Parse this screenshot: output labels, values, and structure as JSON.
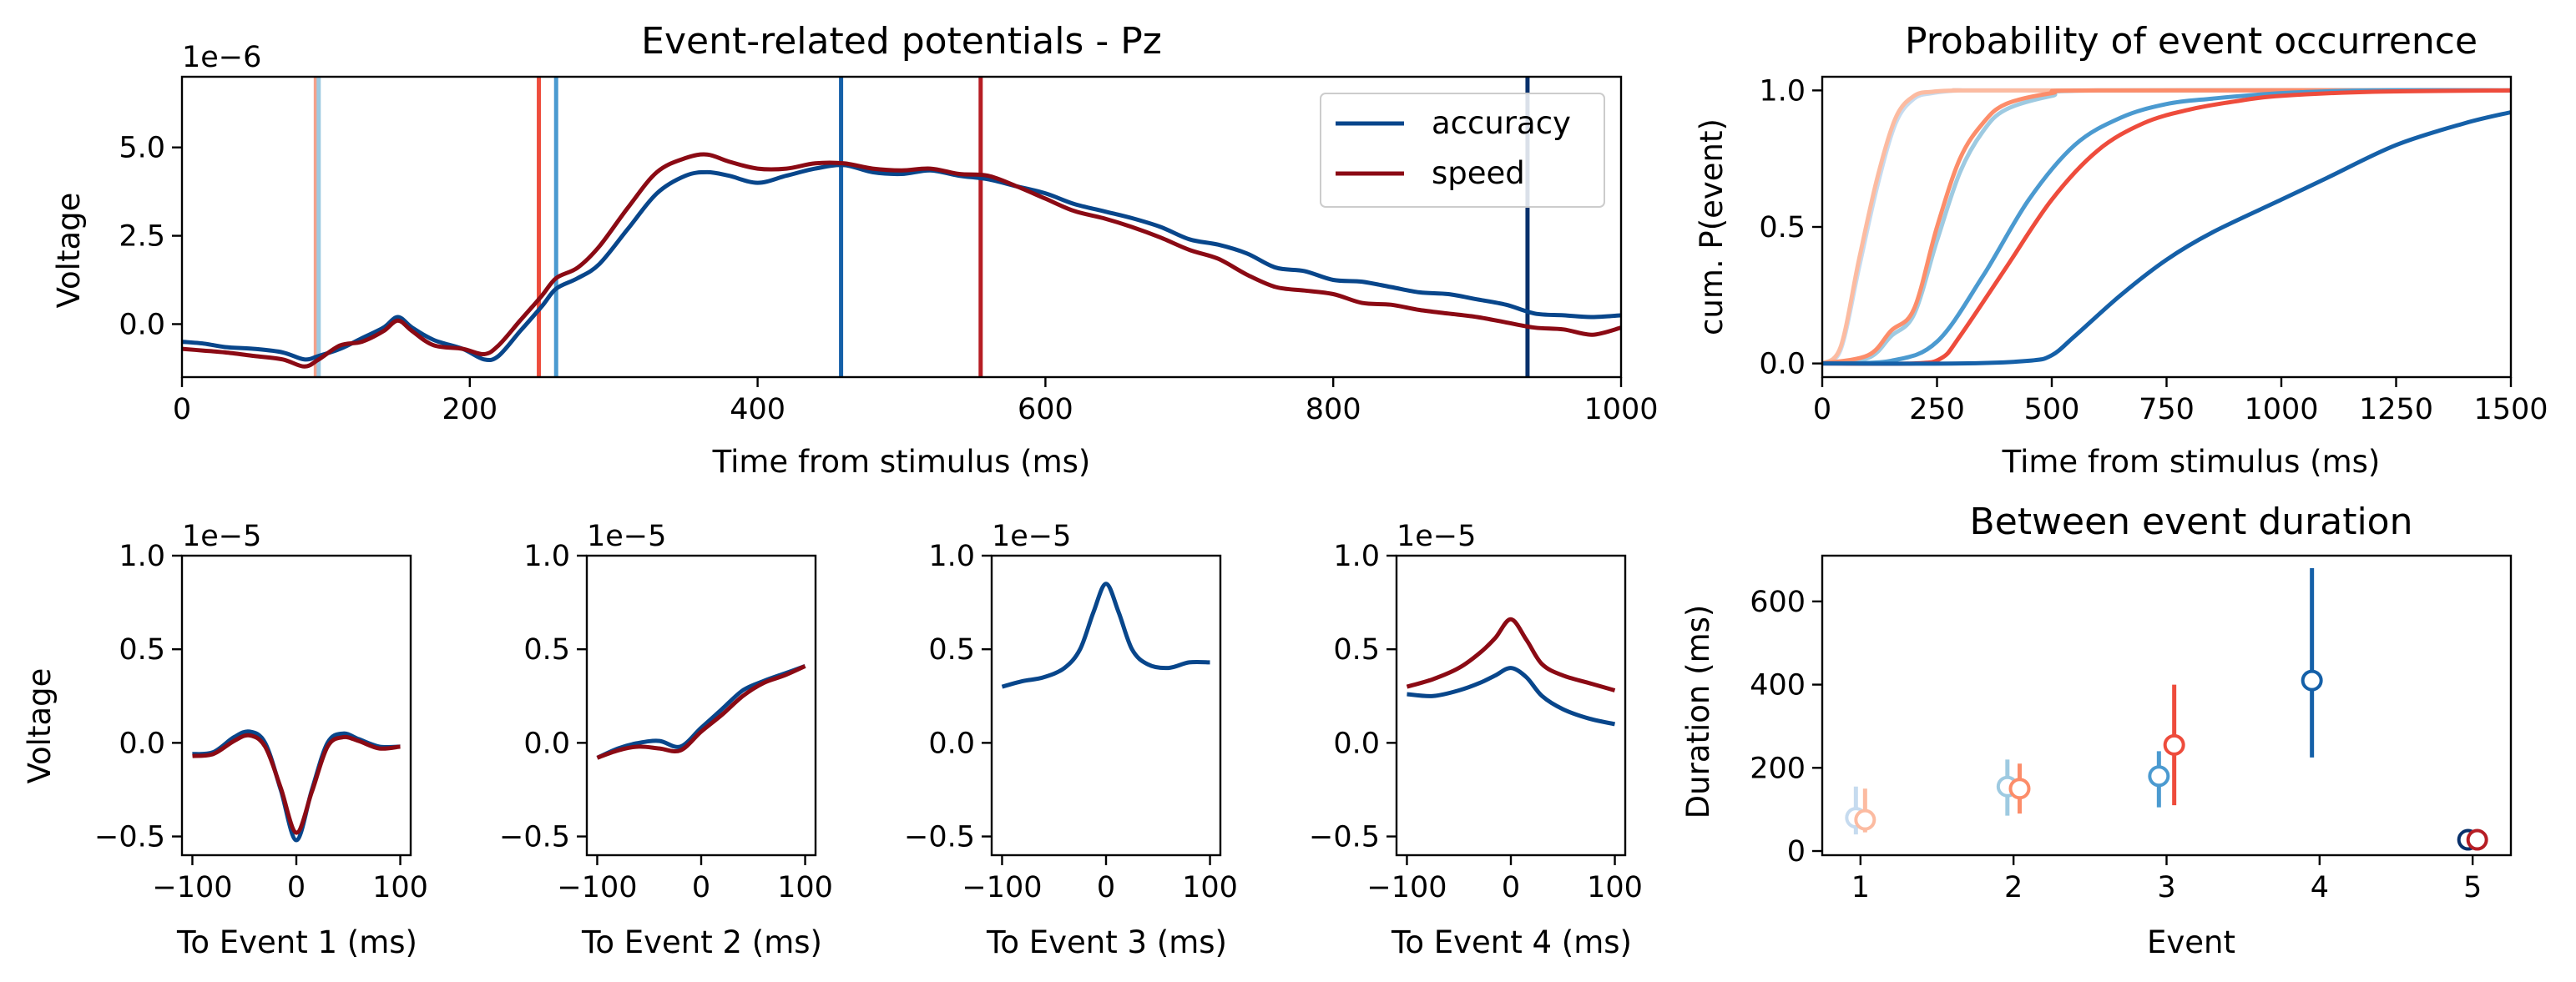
{
  "colors": {
    "accuracy": "#08468b",
    "speed": "#8b0a14"
  },
  "chart_data": [
    {
      "id": "erp",
      "type": "line",
      "title": "Event-related potentials - Pz",
      "xlabel": "Time from stimulus (ms)",
      "ylabel": "Voltage",
      "offset_text": "1e−6",
      "xlim": [
        0,
        1000
      ],
      "ylim": [
        -1.5,
        7.0
      ],
      "xticks": [
        0,
        200,
        400,
        600,
        800,
        1000
      ],
      "xtick_labels": [
        "0",
        "200",
        "400",
        "600",
        "800",
        "1000"
      ],
      "yticks": [
        0.0,
        2.5,
        5.0
      ],
      "ytick_labels": [
        "0.0",
        "2.5",
        "5.0"
      ],
      "legend_position": "top-right",
      "series": [
        {
          "name": "accuracy",
          "color": "#08468b",
          "x": [
            0,
            15,
            30,
            50,
            70,
            85,
            95,
            110,
            125,
            140,
            150,
            160,
            175,
            195,
            210,
            220,
            235,
            250,
            260,
            275,
            290,
            310,
            330,
            350,
            365,
            380,
            400,
            420,
            440,
            460,
            480,
            500,
            520,
            540,
            560,
            580,
            600,
            620,
            640,
            660,
            680,
            700,
            720,
            740,
            760,
            780,
            800,
            820,
            840,
            860,
            880,
            900,
            920,
            940,
            960,
            980,
            1000
          ],
          "y": [
            -0.5,
            -0.55,
            -0.65,
            -0.7,
            -0.8,
            -1.0,
            -0.9,
            -0.7,
            -0.4,
            -0.1,
            0.2,
            -0.1,
            -0.45,
            -0.7,
            -1.0,
            -0.9,
            -0.2,
            0.5,
            1.0,
            1.3,
            1.7,
            2.7,
            3.7,
            4.2,
            4.3,
            4.2,
            4.0,
            4.2,
            4.4,
            4.5,
            4.3,
            4.25,
            4.35,
            4.2,
            4.1,
            3.9,
            3.7,
            3.4,
            3.2,
            3.0,
            2.75,
            2.4,
            2.25,
            2.0,
            1.6,
            1.5,
            1.25,
            1.2,
            1.05,
            0.9,
            0.85,
            0.7,
            0.55,
            0.3,
            0.25,
            0.2,
            0.25
          ]
        },
        {
          "name": "speed",
          "color": "#8b0a14",
          "x": [
            0,
            15,
            30,
            50,
            70,
            85,
            95,
            110,
            125,
            140,
            150,
            160,
            175,
            195,
            210,
            220,
            235,
            250,
            260,
            275,
            290,
            310,
            330,
            350,
            365,
            380,
            400,
            420,
            440,
            460,
            480,
            500,
            520,
            540,
            560,
            580,
            600,
            620,
            640,
            660,
            680,
            700,
            720,
            740,
            760,
            780,
            800,
            820,
            840,
            860,
            880,
            900,
            920,
            940,
            960,
            980,
            1000
          ],
          "y": [
            -0.7,
            -0.75,
            -0.8,
            -0.9,
            -1.0,
            -1.2,
            -1.0,
            -0.6,
            -0.5,
            -0.2,
            0.1,
            -0.2,
            -0.6,
            -0.7,
            -0.85,
            -0.6,
            0.1,
            0.8,
            1.3,
            1.6,
            2.2,
            3.3,
            4.3,
            4.7,
            4.8,
            4.6,
            4.4,
            4.4,
            4.55,
            4.55,
            4.4,
            4.35,
            4.4,
            4.25,
            4.2,
            3.9,
            3.55,
            3.2,
            3.0,
            2.75,
            2.45,
            2.1,
            1.85,
            1.4,
            1.05,
            0.95,
            0.85,
            0.6,
            0.55,
            0.4,
            0.3,
            0.2,
            0.05,
            -0.1,
            -0.15,
            -0.3,
            -0.1
          ]
        }
      ],
      "vlines": [
        {
          "x": 93,
          "color": "#f4a18a"
        },
        {
          "x": 95,
          "color": "#9ecae1"
        },
        {
          "x": 248,
          "color": "#ee4c3c"
        },
        {
          "x": 260,
          "color": "#4b9ad0"
        },
        {
          "x": 458,
          "color": "#1560a8"
        },
        {
          "x": 555,
          "color": "#b61d24"
        },
        {
          "x": 935,
          "color": "#08306b"
        }
      ]
    },
    {
      "id": "cdf",
      "type": "line",
      "title": "Probability of event occurrence",
      "xlabel": "Time from stimulus (ms)",
      "ylabel": "cum. P(event)",
      "xlim": [
        0,
        1500
      ],
      "ylim": [
        -0.05,
        1.05
      ],
      "xticks": [
        0,
        250,
        500,
        750,
        1000,
        1250,
        1500
      ],
      "xtick_labels": [
        "0",
        "250",
        "500",
        "750",
        "1000",
        "1250",
        "1500"
      ],
      "yticks": [
        0.0,
        0.5,
        1.0
      ],
      "ytick_labels": [
        "0.0",
        "0.5",
        "1.0"
      ],
      "series": [
        {
          "color": "#c6dbef",
          "x": [
            0,
            40,
            80,
            120,
            160,
            200,
            240,
            300,
            400,
            1500
          ],
          "y": [
            0,
            0.05,
            0.35,
            0.65,
            0.88,
            0.97,
            0.99,
            1.0,
            1.0,
            1.0
          ]
        },
        {
          "color": "#fcbba1",
          "x": [
            0,
            40,
            80,
            120,
            160,
            200,
            240,
            300,
            400,
            1500
          ],
          "y": [
            0,
            0.06,
            0.38,
            0.68,
            0.9,
            0.98,
            0.995,
            1.0,
            1.0,
            1.0
          ]
        },
        {
          "color": "#9ecae1",
          "x": [
            0,
            100,
            150,
            200,
            250,
            300,
            350,
            400,
            500,
            600,
            1500
          ],
          "y": [
            0,
            0.02,
            0.1,
            0.18,
            0.45,
            0.7,
            0.85,
            0.93,
            0.98,
            1.0,
            1.0
          ]
        },
        {
          "color": "#fc8d6a",
          "x": [
            0,
            100,
            150,
            200,
            250,
            300,
            350,
            400,
            500,
            600,
            1500
          ],
          "y": [
            0,
            0.03,
            0.12,
            0.2,
            0.5,
            0.75,
            0.88,
            0.95,
            0.99,
            1.0,
            1.0
          ]
        },
        {
          "color": "#4b9ad0",
          "x": [
            0,
            150,
            250,
            350,
            450,
            550,
            650,
            750,
            850,
            1000,
            1200,
            1500
          ],
          "y": [
            0,
            0.01,
            0.08,
            0.32,
            0.6,
            0.8,
            0.9,
            0.95,
            0.97,
            0.99,
            1.0,
            1.0
          ]
        },
        {
          "color": "#ee4c3c",
          "x": [
            0,
            200,
            260,
            300,
            400,
            500,
            600,
            700,
            800,
            900,
            1000,
            1200,
            1500
          ],
          "y": [
            0,
            0.0,
            0.02,
            0.1,
            0.35,
            0.6,
            0.78,
            0.88,
            0.93,
            0.96,
            0.98,
            0.995,
            1.0
          ]
        },
        {
          "color": "#1560a8",
          "x": [
            0,
            300,
            450,
            500,
            550,
            650,
            750,
            850,
            1000,
            1100,
            1250,
            1400,
            1500
          ],
          "y": [
            0,
            0.0,
            0.01,
            0.03,
            0.1,
            0.25,
            0.38,
            0.48,
            0.6,
            0.68,
            0.8,
            0.88,
            0.92
          ]
        }
      ]
    },
    {
      "id": "topo1",
      "type": "line",
      "xlabel": "To Event 1 (ms)",
      "ylabel": "Voltage",
      "offset_text": "1e−5",
      "xlim": [
        -110,
        110
      ],
      "ylim": [
        -0.6,
        1.0
      ],
      "xticks": [
        -100,
        0,
        100
      ],
      "xtick_labels": [
        "−100",
        "0",
        "100"
      ],
      "yticks": [
        -0.5,
        0.0,
        0.5,
        1.0
      ],
      "ytick_labels": [
        "−0.5",
        "0.0",
        "0.5",
        "1.0"
      ],
      "series": [
        {
          "name": "accuracy",
          "color": "#08468b",
          "x": [
            -100,
            -80,
            -60,
            -45,
            -30,
            -15,
            0,
            15,
            30,
            45,
            60,
            80,
            100
          ],
          "y": [
            -0.06,
            -0.05,
            0.03,
            0.06,
            0.0,
            -0.25,
            -0.52,
            -0.25,
            0.0,
            0.05,
            0.02,
            -0.02,
            -0.02
          ]
        },
        {
          "name": "speed",
          "color": "#8b0a14",
          "x": [
            -100,
            -80,
            -60,
            -45,
            -30,
            -15,
            0,
            15,
            30,
            45,
            60,
            80,
            100
          ],
          "y": [
            -0.07,
            -0.06,
            0.01,
            0.04,
            -0.02,
            -0.24,
            -0.48,
            -0.26,
            -0.02,
            0.03,
            0.01,
            -0.03,
            -0.02
          ]
        }
      ]
    },
    {
      "id": "topo2",
      "type": "line",
      "xlabel": "To Event 2 (ms)",
      "xlim": [
        -110,
        110
      ],
      "ylim": [
        -0.6,
        1.0
      ],
      "xticks": [
        -100,
        0,
        100
      ],
      "xtick_labels": [
        "−100",
        "0",
        "100"
      ],
      "yticks": [
        -0.5,
        0.0,
        0.5,
        1.0
      ],
      "ytick_labels": [
        "−0.5",
        "0.0",
        "0.5",
        "1.0"
      ],
      "offset_text": "1e−5",
      "series": [
        {
          "name": "accuracy",
          "color": "#08468b",
          "x": [
            -100,
            -80,
            -60,
            -40,
            -20,
            0,
            20,
            40,
            60,
            80,
            100
          ],
          "y": [
            -0.08,
            -0.03,
            0.0,
            0.01,
            -0.02,
            0.08,
            0.18,
            0.28,
            0.33,
            0.37,
            0.41
          ]
        },
        {
          "name": "speed",
          "color": "#8b0a14",
          "x": [
            -100,
            -80,
            -60,
            -40,
            -20,
            0,
            20,
            40,
            60,
            80,
            100
          ],
          "y": [
            -0.08,
            -0.04,
            -0.02,
            -0.03,
            -0.04,
            0.06,
            0.15,
            0.25,
            0.32,
            0.36,
            0.41
          ]
        }
      ]
    },
    {
      "id": "topo3",
      "type": "line",
      "xlabel": "To Event 3 (ms)",
      "xlim": [
        -110,
        110
      ],
      "ylim": [
        -0.6,
        1.0
      ],
      "xticks": [
        -100,
        0,
        100
      ],
      "xtick_labels": [
        "−100",
        "0",
        "100"
      ],
      "yticks": [
        -0.5,
        0.0,
        0.5,
        1.0
      ],
      "ytick_labels": [
        "−0.5",
        "0.0",
        "0.5",
        "1.0"
      ],
      "offset_text": "1e−5",
      "series": [
        {
          "name": "accuracy",
          "color": "#08468b",
          "x": [
            -100,
            -80,
            -60,
            -40,
            -25,
            -12,
            0,
            12,
            25,
            40,
            60,
            80,
            100
          ],
          "y": [
            0.3,
            0.33,
            0.35,
            0.4,
            0.5,
            0.7,
            0.85,
            0.7,
            0.5,
            0.42,
            0.4,
            0.43,
            0.43
          ]
        }
      ]
    },
    {
      "id": "topo4",
      "type": "line",
      "xlabel": "To Event 4 (ms)",
      "xlim": [
        -110,
        110
      ],
      "ylim": [
        -0.6,
        1.0
      ],
      "xticks": [
        -100,
        0,
        100
      ],
      "xtick_labels": [
        "−100",
        "0",
        "100"
      ],
      "yticks": [
        -0.5,
        0.0,
        0.5,
        1.0
      ],
      "ytick_labels": [
        "−0.5",
        "0.0",
        "0.5",
        "1.0"
      ],
      "offset_text": "1e−5",
      "series": [
        {
          "name": "accuracy",
          "color": "#08468b",
          "x": [
            -100,
            -75,
            -50,
            -30,
            -15,
            0,
            15,
            30,
            50,
            75,
            100
          ],
          "y": [
            0.26,
            0.25,
            0.28,
            0.32,
            0.36,
            0.4,
            0.35,
            0.25,
            0.18,
            0.13,
            0.1
          ]
        },
        {
          "name": "speed",
          "color": "#8b0a14",
          "x": [
            -100,
            -75,
            -50,
            -30,
            -15,
            0,
            15,
            30,
            50,
            75,
            100
          ],
          "y": [
            0.3,
            0.34,
            0.4,
            0.48,
            0.56,
            0.66,
            0.55,
            0.42,
            0.36,
            0.32,
            0.28
          ]
        }
      ]
    },
    {
      "id": "duration",
      "type": "scatter",
      "title": "Between event duration",
      "xlabel": "Event",
      "ylabel": "Duration (ms)",
      "xlim": [
        0.75,
        5.25
      ],
      "ylim": [
        -10,
        710
      ],
      "xticks": [
        1,
        2,
        3,
        4,
        5
      ],
      "xtick_labels": [
        "1",
        "2",
        "3",
        "4",
        "5"
      ],
      "yticks": [
        0,
        200,
        400,
        600
      ],
      "ytick_labels": [
        "0",
        "200",
        "400",
        "600"
      ],
      "points": [
        {
          "x": 0.97,
          "y": 80,
          "lo": 40,
          "hi": 155,
          "color": "#c6dbef"
        },
        {
          "x": 1.03,
          "y": 75,
          "lo": 45,
          "hi": 150,
          "color": "#fcbba1"
        },
        {
          "x": 1.96,
          "y": 155,
          "lo": 85,
          "hi": 220,
          "color": "#9ecae1"
        },
        {
          "x": 2.04,
          "y": 150,
          "lo": 90,
          "hi": 210,
          "color": "#fc8d6a"
        },
        {
          "x": 2.95,
          "y": 180,
          "lo": 105,
          "hi": 240,
          "color": "#4b9ad0"
        },
        {
          "x": 3.05,
          "y": 255,
          "lo": 110,
          "hi": 400,
          "color": "#ee4c3c"
        },
        {
          "x": 3.95,
          "y": 410,
          "lo": 225,
          "hi": 680,
          "color": "#1560a8"
        },
        {
          "x": 4.97,
          "y": 27,
          "lo": 27,
          "hi": 27,
          "color": "#08306b"
        },
        {
          "x": 5.03,
          "y": 27,
          "lo": 27,
          "hi": 27,
          "color": "#b61d24"
        }
      ]
    }
  ]
}
